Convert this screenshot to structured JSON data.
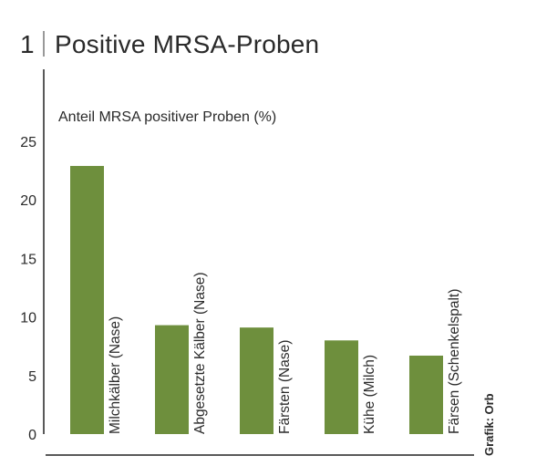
{
  "chart_data": {
    "type": "bar",
    "title_number": "1",
    "title": "Positive MRSA-Proben",
    "ylabel": "Anteil MRSA positiver Proben (%)",
    "xlabel": "",
    "categories": [
      "Milchkälber (Nase)",
      "Abgesetzte Kälber (Nase)",
      "Färsten (Nase)",
      "Kühe (Milch)",
      "Färsen (Schenkelspalt)"
    ],
    "values": [
      22.9,
      9.3,
      9.1,
      8.0,
      6.7
    ],
    "ylim": [
      0,
      25
    ],
    "yticks": [
      "0",
      "5",
      "10",
      "15",
      "20",
      "25"
    ],
    "grid": false,
    "bar_color": "#6e8f3d",
    "credit": "Grafik: Orb"
  }
}
